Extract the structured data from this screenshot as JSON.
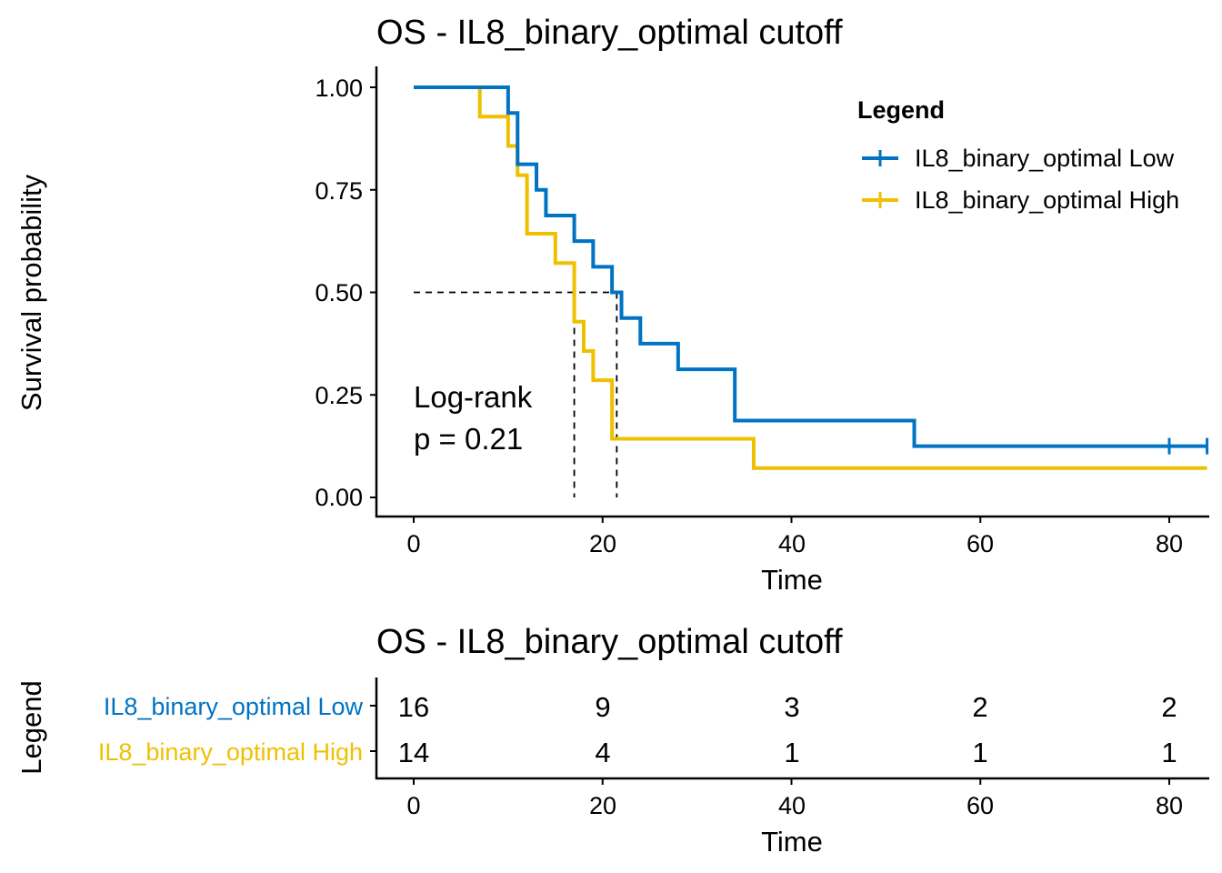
{
  "colors": {
    "low": "#0073C2",
    "high": "#EFC000",
    "axis": "#000000"
  },
  "plot": {
    "title": "OS - IL8_binary_optimal cutoff",
    "ylabel": "Survival probability",
    "xlabel": "Time",
    "yticks": [
      "0.00",
      "0.25",
      "0.50",
      "0.75",
      "1.00"
    ],
    "xticks": [
      "0",
      "20",
      "40",
      "60",
      "80"
    ],
    "annotation_line1": "Log-rank",
    "annotation_line2": "p = 0.21",
    "legend_title": "Legend",
    "legend_low": "IL8_binary_optimal Low",
    "legend_high": "IL8_binary_optimal High"
  },
  "table": {
    "title": "OS - IL8_binary_optimal cutoff",
    "ylabel": "Legend",
    "xlabel": "Time",
    "xticks": [
      "0",
      "20",
      "40",
      "60",
      "80"
    ],
    "row_low_label": "IL8_binary_optimal Low",
    "row_high_label": "IL8_binary_optimal High",
    "low_values": [
      "16",
      "9",
      "3",
      "2",
      "2"
    ],
    "high_values": [
      "14",
      "4",
      "1",
      "1",
      "1"
    ]
  },
  "chart_data": {
    "type": "line",
    "subtype": "kaplan-meier",
    "title": "OS - IL8_binary_optimal cutoff",
    "xlabel": "Time",
    "ylabel": "Survival probability",
    "xlim": [
      0,
      84
    ],
    "ylim": [
      0,
      1
    ],
    "x_ticks": [
      0,
      20,
      40,
      60,
      80
    ],
    "y_ticks": [
      0,
      0.25,
      0.5,
      0.75,
      1.0
    ],
    "legend_position": "top-right",
    "series": [
      {
        "name": "IL8_binary_optimal Low",
        "color": "#0073C2",
        "steps": [
          [
            0,
            1.0
          ],
          [
            10,
            0.9375
          ],
          [
            11,
            0.8125
          ],
          [
            13,
            0.75
          ],
          [
            14,
            0.6875
          ],
          [
            17,
            0.625
          ],
          [
            19,
            0.5625
          ],
          [
            21,
            0.5
          ],
          [
            22,
            0.4375
          ],
          [
            24,
            0.375
          ],
          [
            28,
            0.3125
          ],
          [
            34,
            0.1875
          ],
          [
            53,
            0.125
          ]
        ],
        "end_x": 84,
        "censor_marks": [
          [
            80,
            0.125
          ],
          [
            84,
            0.125
          ]
        ]
      },
      {
        "name": "IL8_binary_optimal High",
        "color": "#EFC000",
        "steps": [
          [
            0,
            1.0
          ],
          [
            7,
            0.9286
          ],
          [
            10,
            0.8571
          ],
          [
            11,
            0.7857
          ],
          [
            12,
            0.6429
          ],
          [
            15,
            0.5714
          ],
          [
            17,
            0.4286
          ],
          [
            18,
            0.3571
          ],
          [
            19,
            0.2857
          ],
          [
            21,
            0.1429
          ],
          [
            36,
            0.0714
          ]
        ],
        "end_x": 84,
        "censor_marks": []
      }
    ],
    "median_lines": [
      17,
      21.5
    ],
    "annotation": "Log-rank p = 0.21",
    "risk_table": {
      "times": [
        0,
        20,
        40,
        60,
        80
      ],
      "IL8_binary_optimal Low": [
        16,
        9,
        3,
        2,
        2
      ],
      "IL8_binary_optimal High": [
        14,
        4,
        1,
        1,
        1
      ]
    }
  }
}
